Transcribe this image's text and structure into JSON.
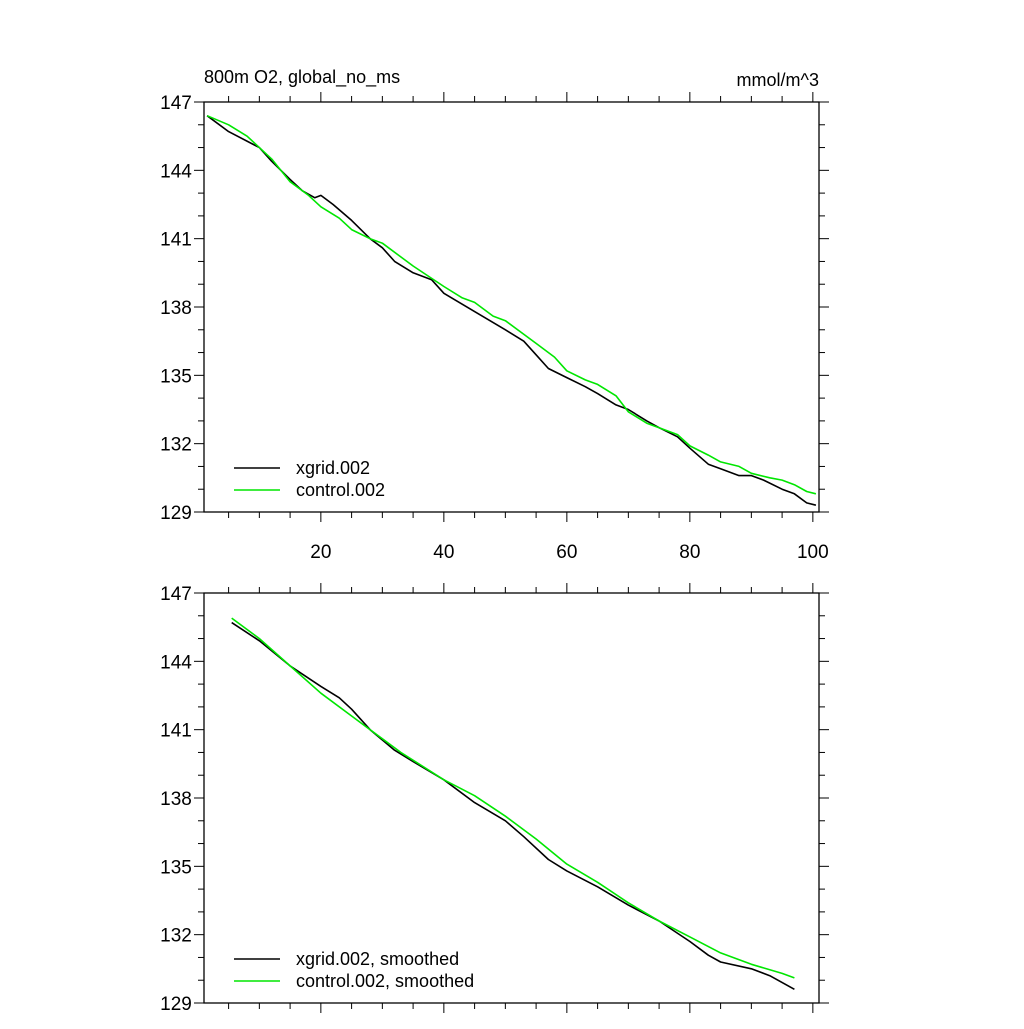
{
  "chart_data": [
    {
      "type": "line",
      "title_left": "800m O2, global_no_ms",
      "title_right": "mmol/m^3",
      "xlim": [
        1,
        101
      ],
      "ylim": [
        129,
        147
      ],
      "xticks": [
        20,
        40,
        60,
        80,
        100
      ],
      "xtick_labels": [
        "20",
        "40",
        "60",
        "80",
        "100"
      ],
      "yticks": [
        129,
        132,
        135,
        138,
        141,
        144,
        147
      ],
      "ytick_labels": [
        "129",
        "132",
        "135",
        "138",
        "141",
        "144",
        "147"
      ],
      "legend_position": "bottom-left",
      "series": [
        {
          "name": "xgrid.002",
          "color": "#000000",
          "x": [
            1.5,
            5,
            10,
            12,
            15,
            17,
            19,
            20,
            22,
            25,
            28,
            30,
            32,
            35,
            38,
            40,
            45,
            50,
            53,
            55,
            57,
            60,
            63,
            65,
            68,
            70,
            73,
            75,
            78,
            80,
            83,
            85,
            88,
            90,
            92,
            95,
            97,
            99,
            100.5
          ],
          "y": [
            146.4,
            145.7,
            145.0,
            144.4,
            143.6,
            143.1,
            142.8,
            142.9,
            142.5,
            141.8,
            141.0,
            140.6,
            140.0,
            139.5,
            139.2,
            138.6,
            137.8,
            137.0,
            136.5,
            135.9,
            135.3,
            134.9,
            134.5,
            134.2,
            133.7,
            133.5,
            133.0,
            132.7,
            132.3,
            131.8,
            131.1,
            130.9,
            130.6,
            130.6,
            130.4,
            130.0,
            129.8,
            129.4,
            129.3
          ]
        },
        {
          "name": "control.002",
          "color": "#00e600",
          "x": [
            1.5,
            5,
            8,
            12,
            15,
            18,
            20,
            23,
            25,
            28,
            30,
            33,
            35,
            40,
            43,
            45,
            48,
            50,
            55,
            58,
            60,
            63,
            65,
            68,
            70,
            73,
            75,
            78,
            80,
            83,
            85,
            88,
            90,
            93,
            95,
            97,
            99,
            100.5
          ],
          "y": [
            146.4,
            146.0,
            145.5,
            144.5,
            143.5,
            142.9,
            142.4,
            141.9,
            141.4,
            141.0,
            140.8,
            140.2,
            139.8,
            138.9,
            138.4,
            138.2,
            137.6,
            137.4,
            136.4,
            135.8,
            135.2,
            134.8,
            134.6,
            134.1,
            133.4,
            132.9,
            132.7,
            132.4,
            131.9,
            131.5,
            131.2,
            131.0,
            130.7,
            130.5,
            130.4,
            130.2,
            129.9,
            129.8
          ]
        }
      ]
    },
    {
      "type": "line",
      "xlim": [
        1,
        101
      ],
      "ylim": [
        129,
        147
      ],
      "xticks": [
        20,
        40,
        60,
        80,
        100
      ],
      "yticks": [
        129,
        132,
        135,
        138,
        141,
        144,
        147
      ],
      "ytick_labels": [
        "129",
        "132",
        "135",
        "138",
        "141",
        "144",
        "147"
      ],
      "legend_position": "bottom-left",
      "series": [
        {
          "name": "xgrid.002, smoothed",
          "color": "#000000",
          "x": [
            5.5,
            10,
            15,
            20,
            23,
            25,
            28,
            32,
            35,
            40,
            45,
            50,
            53,
            57,
            60,
            65,
            70,
            75,
            80,
            83,
            85,
            90,
            93,
            97
          ],
          "y": [
            145.7,
            144.9,
            143.8,
            142.9,
            142.4,
            141.9,
            141.0,
            140.1,
            139.6,
            138.8,
            137.8,
            137.0,
            136.3,
            135.3,
            134.8,
            134.1,
            133.3,
            132.6,
            131.7,
            131.1,
            130.8,
            130.5,
            130.2,
            129.6
          ]
        },
        {
          "name": "control.002, smoothed",
          "color": "#00e600",
          "x": [
            5.5,
            10,
            15,
            20,
            25,
            30,
            33,
            40,
            45,
            50,
            55,
            60,
            65,
            70,
            75,
            80,
            85,
            90,
            95,
            97
          ],
          "y": [
            145.9,
            145.0,
            143.8,
            142.6,
            141.6,
            140.6,
            140.0,
            138.8,
            138.1,
            137.2,
            136.2,
            135.1,
            134.3,
            133.4,
            132.6,
            131.9,
            131.2,
            130.7,
            130.3,
            130.1
          ]
        }
      ]
    }
  ]
}
